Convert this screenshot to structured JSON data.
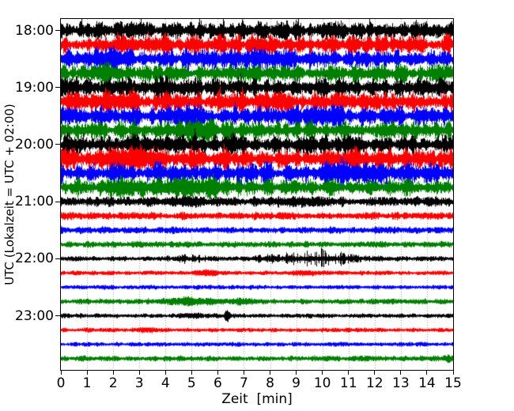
{
  "figure": {
    "background": "#ffffff"
  },
  "chart_data": {
    "type": "line",
    "variant": "helicorder-seismogram-dayplot",
    "title": "",
    "xlabel": "Zeit  [min]",
    "ylabel": "UTC (Lokalzeit = UTC + 02:00)",
    "xlim": [
      0,
      15
    ],
    "minutes_per_line": 15,
    "xticks": [
      "0",
      "1",
      "2",
      "3",
      "4",
      "5",
      "6",
      "7",
      "8",
      "9",
      "10",
      "11",
      "12",
      "13",
      "14",
      "15"
    ],
    "ytick_labels": [
      "18:00",
      "19:00",
      "20:00",
      "21:00",
      "22:00",
      "23:00"
    ],
    "grid": {
      "vertical_dotted_per_minute": true,
      "color": "#999999",
      "dash": [
        1,
        2
      ]
    },
    "axis_color": "#000000",
    "trace_colors_cycle": [
      "#000000",
      "#ff0000",
      "#0000ff",
      "#008000"
    ],
    "traces": [
      {
        "start": "18:00",
        "color": "#000000",
        "amp": 10,
        "events": []
      },
      {
        "start": "18:15",
        "color": "#ff0000",
        "amp": 10.5,
        "events": [
          {
            "t": 3.2,
            "w": 0.6,
            "a": 3
          }
        ]
      },
      {
        "start": "18:30",
        "color": "#0000ff",
        "amp": 10,
        "events": [
          {
            "t": 2.0,
            "w": 0.5,
            "a": 3
          }
        ]
      },
      {
        "start": "18:45",
        "color": "#008000",
        "amp": 9.5,
        "events": [
          {
            "t": 1.9,
            "w": 0.4,
            "a": 3
          }
        ]
      },
      {
        "start": "19:00",
        "color": "#000000",
        "amp": 10,
        "events": []
      },
      {
        "start": "19:15",
        "color": "#ff0000",
        "amp": 11,
        "events": [
          {
            "t": 2.3,
            "w": 0.5,
            "a": 5
          }
        ]
      },
      {
        "start": "19:30",
        "color": "#0000ff",
        "amp": 10.5,
        "events": [
          {
            "t": 4.6,
            "w": 0.5,
            "a": 3
          },
          {
            "t": 9.9,
            "w": 0.5,
            "a": 4
          }
        ]
      },
      {
        "start": "19:45",
        "color": "#008000",
        "amp": 9.5,
        "events": [
          {
            "t": 5.1,
            "w": 0.6,
            "a": 3
          }
        ]
      },
      {
        "start": "20:00",
        "color": "#000000",
        "amp": 10,
        "events": [
          {
            "t": 3.6,
            "w": 0.6,
            "a": 4
          }
        ]
      },
      {
        "start": "20:15",
        "color": "#ff0000",
        "amp": 11,
        "events": [
          {
            "t": 3.1,
            "w": 0.7,
            "a": 5
          },
          {
            "t": 11.1,
            "w": 0.4,
            "a": 4
          }
        ]
      },
      {
        "start": "20:30",
        "color": "#0000ff",
        "amp": 10.5,
        "events": [
          {
            "t": 10.9,
            "w": 0.7,
            "a": 4
          }
        ]
      },
      {
        "start": "20:45",
        "color": "#008000",
        "amp": 9.5,
        "events": [
          {
            "t": 2.2,
            "w": 0.4,
            "a": 3
          },
          {
            "t": 4.8,
            "w": 0.9,
            "a": 4
          }
        ]
      },
      {
        "start": "21:00",
        "color": "#000000",
        "amp": 5,
        "events": [
          {
            "t": 4.6,
            "w": 0.5,
            "a": 2
          },
          {
            "t": 9.0,
            "w": 0.5,
            "a": 2
          }
        ]
      },
      {
        "start": "21:15",
        "color": "#ff0000",
        "amp": 4,
        "events": []
      },
      {
        "start": "21:30",
        "color": "#0000ff",
        "amp": 3.5,
        "events": []
      },
      {
        "start": "21:45",
        "color": "#008000",
        "amp": 3.2,
        "events": []
      },
      {
        "start": "22:00",
        "color": "#000000",
        "amp": 2.6,
        "events": [
          {
            "t": 4.9,
            "w": 0.5,
            "a": 3.5,
            "spiky": true
          },
          {
            "t": 7.9,
            "w": 0.3,
            "a": 3,
            "spiky": true
          },
          {
            "t": 9.9,
            "w": 1.0,
            "a": 7,
            "spiky": true
          }
        ]
      },
      {
        "start": "22:15",
        "color": "#ff0000",
        "amp": 2.4,
        "events": [
          {
            "t": 5.6,
            "w": 0.3,
            "a": 2.5
          },
          {
            "t": 9.4,
            "w": 0.4,
            "a": 1.5
          }
        ]
      },
      {
        "start": "22:30",
        "color": "#0000ff",
        "amp": 2.4,
        "events": []
      },
      {
        "start": "22:45",
        "color": "#008000",
        "amp": 2.8,
        "events": [
          {
            "t": 4.8,
            "w": 0.7,
            "a": 3
          },
          {
            "t": 6.9,
            "w": 0.4,
            "a": 2
          }
        ]
      },
      {
        "start": "23:00",
        "color": "#000000",
        "amp": 2.4,
        "events": [
          {
            "t": 6.35,
            "w": 0.06,
            "a": 9
          },
          {
            "t": 5.0,
            "w": 0.3,
            "a": 1.5
          }
        ]
      },
      {
        "start": "23:15",
        "color": "#ff0000",
        "amp": 2.3,
        "events": [
          {
            "t": 3.3,
            "w": 0.3,
            "a": 1.2
          }
        ]
      },
      {
        "start": "23:30",
        "color": "#0000ff",
        "amp": 2.3,
        "events": []
      },
      {
        "start": "23:45",
        "color": "#008000",
        "amp": 2.8,
        "events": [
          {
            "t": 14.85,
            "w": 0.15,
            "a": 2.5
          }
        ]
      }
    ]
  }
}
